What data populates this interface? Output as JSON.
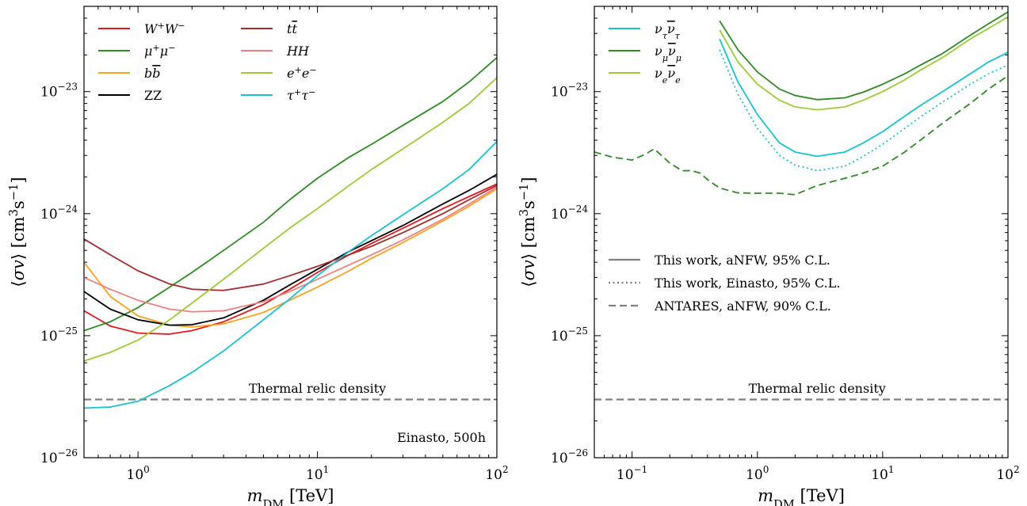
{
  "chart_data": [
    {
      "type": "line",
      "xscale": "log",
      "yscale": "log",
      "xlim": [
        0.5,
        100
      ],
      "ylim": [
        1e-26,
        5e-23
      ],
      "xlabel": "m_DM [TeV]",
      "ylabel": "⟨σv⟩ [cm³s⁻¹]",
      "xticks": [
        {
          "value": 1,
          "label": "10",
          "exp": "0"
        },
        {
          "value": 10,
          "label": "10",
          "exp": "1"
        },
        {
          "value": 100,
          "label": "10",
          "exp": "2"
        }
      ],
      "yticks": [
        {
          "value": 1e-26,
          "label": "10",
          "exp": "−26"
        },
        {
          "value": 1e-25,
          "label": "10",
          "exp": "−25"
        },
        {
          "value": 1e-24,
          "label": "10",
          "exp": "−24"
        },
        {
          "value": 1e-23,
          "label": "10",
          "exp": "−23"
        }
      ],
      "legend_position": "top-left",
      "annotations": [
        {
          "text": "Thermal relic density",
          "x": 10,
          "y": 3.3e-26
        },
        {
          "text": "Einasto, 500h",
          "x": 60,
          "y": 1.5e-26
        }
      ],
      "reference_lines": [
        {
          "name": "Thermal relic density",
          "y": 3e-26,
          "color": "#808080",
          "style": "dashed"
        }
      ],
      "series": [
        {
          "name": "W⁺W⁻",
          "color": "#e31a1c",
          "style": "solid",
          "x": [
            0.5,
            0.7,
            1.0,
            1.5,
            2,
            3,
            5,
            7,
            10,
            15,
            20,
            30,
            50,
            70,
            100
          ],
          "y": [
            1.6e-25,
            1.2e-25,
            1.05e-25,
            1.03e-25,
            1.1e-25,
            1.3e-25,
            1.8e-25,
            2.4e-25,
            3.3e-25,
            4.6e-25,
            5.7e-25,
            7.6e-25,
            1.1e-24,
            1.38e-24,
            1.75e-24
          ]
        },
        {
          "name": "μ⁺μ⁻",
          "color": "#2e8b24",
          "style": "solid",
          "x": [
            0.5,
            0.7,
            1.0,
            1.5,
            2,
            3,
            5,
            7,
            10,
            15,
            20,
            30,
            50,
            70,
            100
          ],
          "y": [
            1.1e-25,
            1.3e-25,
            1.7e-25,
            2.5e-25,
            3.3e-25,
            5e-25,
            8.5e-25,
            1.3e-24,
            1.95e-24,
            2.9e-24,
            3.7e-24,
            5.3e-24,
            8.3e-24,
            1.2e-23,
            1.9e-23
          ]
        },
        {
          "name": "bb̄",
          "color": "#ff9f1c",
          "style": "solid",
          "x": [
            0.5,
            0.7,
            1.0,
            1.5,
            2,
            3,
            5,
            7,
            10,
            15,
            20,
            30,
            50,
            70,
            100
          ],
          "y": [
            4e-25,
            2.1e-25,
            1.45e-25,
            1.22e-25,
            1.18e-25,
            1.25e-25,
            1.55e-25,
            1.95e-25,
            2.5e-25,
            3.4e-25,
            4.3e-25,
            5.8e-25,
            8.7e-25,
            1.15e-24,
            1.6e-24
          ]
        },
        {
          "name": "ZZ",
          "color": "#000000",
          "style": "solid",
          "x": [
            0.5,
            0.7,
            1.0,
            1.5,
            2,
            3,
            5,
            7,
            10,
            15,
            20,
            30,
            50,
            70,
            100
          ],
          "y": [
            2.3e-25,
            1.65e-25,
            1.35e-25,
            1.22e-25,
            1.23e-25,
            1.4e-25,
            1.95e-25,
            2.6e-25,
            3.5e-25,
            4.9e-25,
            6e-25,
            8e-25,
            1.2e-24,
            1.55e-24,
            2.1e-24
          ]
        },
        {
          "name": "tt̄",
          "color": "#a52a2a",
          "style": "solid",
          "x": [
            0.5,
            0.7,
            1.0,
            1.5,
            2,
            3,
            5,
            7,
            10,
            15,
            20,
            30,
            50,
            70,
            100
          ],
          "y": [
            6.2e-25,
            4.6e-25,
            3.4e-25,
            2.65e-25,
            2.4e-25,
            2.35e-25,
            2.65e-25,
            3.1e-25,
            3.7e-25,
            4.6e-25,
            5.4e-25,
            7e-25,
            1e-24,
            1.3e-24,
            1.7e-24
          ]
        },
        {
          "name": "HH",
          "color": "#f08080",
          "style": "solid",
          "x": [
            0.5,
            0.7,
            1.0,
            1.5,
            2,
            3,
            5,
            7,
            10,
            15,
            20,
            30,
            50,
            70,
            100
          ],
          "y": [
            3e-25,
            2.4e-25,
            1.95e-25,
            1.65e-25,
            1.57e-25,
            1.6e-25,
            1.9e-25,
            2.3e-25,
            2.9e-25,
            3.8e-25,
            4.6e-25,
            6.1e-25,
            9e-25,
            1.2e-24,
            1.65e-24
          ]
        },
        {
          "name": "e⁺e⁻",
          "color": "#9acd32",
          "style": "solid",
          "x": [
            0.5,
            0.7,
            1.0,
            1.5,
            2,
            3,
            5,
            7,
            10,
            15,
            20,
            30,
            50,
            70,
            100
          ],
          "y": [
            6.2e-26,
            7.3e-26,
            9.2e-26,
            1.35e-25,
            1.85e-25,
            2.9e-25,
            5.2e-25,
            7.6e-25,
            1.1e-24,
            1.7e-24,
            2.3e-24,
            3.4e-24,
            5.6e-24,
            8e-24,
            1.3e-23
          ]
        },
        {
          "name": "τ⁺τ⁻",
          "color": "#17c3d2",
          "style": "solid",
          "x": [
            0.5,
            0.7,
            1.0,
            1.5,
            2,
            3,
            5,
            7,
            10,
            15,
            20,
            30,
            50,
            70,
            100
          ],
          "y": [
            2.55e-26,
            2.6e-26,
            2.9e-26,
            3.9e-26,
            5e-26,
            7.5e-26,
            1.35e-25,
            2e-25,
            3.1e-25,
            4.9e-25,
            6.6e-25,
            9.8e-25,
            1.6e-24,
            2.3e-24,
            3.9e-24
          ]
        }
      ]
    },
    {
      "type": "line",
      "xscale": "log",
      "yscale": "log",
      "xlim": [
        0.05,
        100
      ],
      "ylim": [
        1e-26,
        5e-23
      ],
      "xlabel": "m_DM [TeV]",
      "ylabel": "⟨σv⟩ [cm³s⁻¹]",
      "xticks": [
        {
          "value": 0.1,
          "label": "10",
          "exp": "−1"
        },
        {
          "value": 1,
          "label": "10",
          "exp": "0"
        },
        {
          "value": 10,
          "label": "10",
          "exp": "1"
        },
        {
          "value": 100,
          "label": "10",
          "exp": "2"
        }
      ],
      "yticks": [
        {
          "value": 1e-26,
          "label": "10",
          "exp": "−26"
        },
        {
          "value": 1e-25,
          "label": "10",
          "exp": "−25"
        },
        {
          "value": 1e-24,
          "label": "10",
          "exp": "−24"
        },
        {
          "value": 1e-23,
          "label": "10",
          "exp": "−23"
        }
      ],
      "legend_position": "top-left",
      "annotations": [
        {
          "text": "Thermal relic density",
          "x": 3,
          "y": 3.3e-26
        }
      ],
      "reference_lines": [
        {
          "name": "Thermal relic density",
          "y": 3e-26,
          "color": "#808080",
          "style": "dashed"
        }
      ],
      "style_legend": {
        "position": "center-left",
        "entries": [
          {
            "label": "This work, aNFW, 95% C.L.",
            "style": "solid"
          },
          {
            "label": "This work, Einasto, 95% C.L.",
            "style": "dotted"
          },
          {
            "label": "ANTARES, aNFW, 90% C.L.",
            "style": "dashed"
          }
        ]
      },
      "series": [
        {
          "name": "ν_τν̄_τ",
          "legend_label": "ν_τν̄_τ",
          "color": "#17c3d2",
          "style": "solid",
          "x": [
            0.5,
            0.7,
            1.0,
            1.5,
            2,
            3,
            5,
            7,
            10,
            15,
            20,
            30,
            50,
            70,
            100
          ],
          "y": [
            2.7e-23,
            1.2e-23,
            6.5e-24,
            3.8e-24,
            3.2e-24,
            2.95e-24,
            3.2e-24,
            3.8e-24,
            4.7e-24,
            6.3e-24,
            7.7e-24,
            1e-23,
            1.4e-23,
            1.75e-23,
            2.1e-23
          ]
        },
        {
          "name": "ν_μν̄_μ",
          "legend_label": "ν_μν̄_μ",
          "color": "#2e8b24",
          "style": "solid",
          "x": [
            0.5,
            0.7,
            1.0,
            1.5,
            2,
            3,
            5,
            7,
            10,
            15,
            20,
            30,
            50,
            70,
            100
          ],
          "y": [
            3.8e-23,
            2.2e-23,
            1.45e-23,
            1.05e-23,
            9.3e-24,
            8.6e-24,
            8.9e-24,
            9.9e-24,
            1.15e-23,
            1.4e-23,
            1.65e-23,
            2.05e-23,
            2.9e-23,
            3.6e-23,
            4.5e-23
          ]
        },
        {
          "name": "ν_eν̄_e",
          "legend_label": "ν_eν̄_e",
          "color": "#9acd32",
          "style": "solid",
          "x": [
            0.5,
            0.7,
            1.0,
            1.5,
            2,
            3,
            5,
            7,
            10,
            15,
            20,
            30,
            50,
            70,
            100
          ],
          "y": [
            3.2e-23,
            1.75e-23,
            1.15e-23,
            8.5e-24,
            7.5e-24,
            7.1e-24,
            7.5e-24,
            8.5e-24,
            1e-23,
            1.25e-23,
            1.5e-23,
            1.9e-23,
            2.7e-23,
            3.3e-23,
            4.1e-23
          ]
        },
        {
          "name": "ν_τν̄_τ Einasto",
          "color": "#17c3d2",
          "style": "dotted",
          "x": [
            0.5,
            0.7,
            1.0,
            1.5,
            2,
            3,
            5,
            7,
            10,
            15,
            20,
            30,
            50,
            70,
            100
          ],
          "y": [
            2.2e-23,
            9.5e-24,
            5e-24,
            3e-24,
            2.5e-24,
            2.25e-24,
            2.45e-24,
            2.95e-24,
            3.7e-24,
            5e-24,
            6.2e-24,
            8.2e-24,
            1.15e-23,
            1.4e-23,
            1.65e-23
          ]
        },
        {
          "name": "ANTARES aNFW",
          "color": "#2e8b24",
          "style": "dashed",
          "x": [
            0.05,
            0.07,
            0.1,
            0.13,
            0.15,
            0.2,
            0.25,
            0.3,
            0.35,
            0.4,
            0.5,
            0.7,
            1.0,
            1.5,
            2,
            3,
            5,
            7,
            10,
            15,
            20,
            30,
            50,
            70,
            100
          ],
          "y": [
            3.2e-24,
            2.9e-24,
            2.75e-24,
            3.1e-24,
            3.4e-24,
            2.6e-24,
            2.25e-24,
            2.25e-24,
            2.15e-24,
            1.9e-24,
            1.62e-24,
            1.48e-24,
            1.47e-24,
            1.47e-24,
            1.43e-24,
            1.7e-24,
            1.95e-24,
            2.15e-24,
            2.45e-24,
            3.2e-24,
            4e-24,
            5.5e-24,
            8e-24,
            1.05e-23,
            1.35e-23
          ]
        }
      ]
    }
  ]
}
